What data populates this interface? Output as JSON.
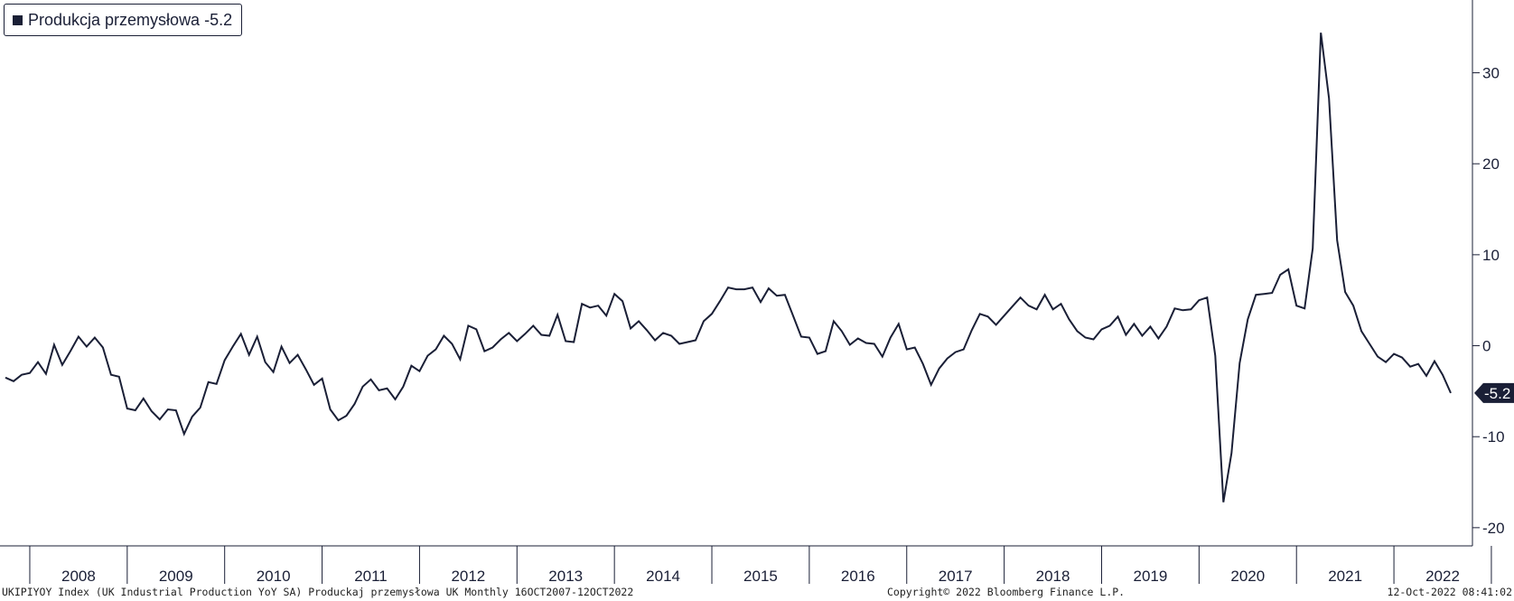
{
  "legend": {
    "label": "Produkcja przemysłowa",
    "value": "-5.2"
  },
  "footer": {
    "left": "UKIPIYOY Index (UK Industrial Production YoY SA) Produckaj przemysłowa UK  Monthly 16OCT2007-12OCT2022",
    "center": "Copyright© 2022 Bloomberg Finance L.P.",
    "right": "12-Oct-2022 08:41:02"
  },
  "colors": {
    "line": "#1a1f36",
    "text": "#1a1f36",
    "background": "#ffffff"
  },
  "chart_data": {
    "type": "line",
    "title": "",
    "xlabel": "",
    "ylabel": "",
    "ylim": [
      -22,
      38
    ],
    "yticks": [
      "30",
      "20",
      "10",
      "0",
      "-10",
      "-20"
    ],
    "ytick_values": [
      30,
      20,
      10,
      0,
      -10,
      -20
    ],
    "x_range": [
      "2007-10",
      "2022-08"
    ],
    "x_tick_labels": [
      "2008",
      "2009",
      "2010",
      "2011",
      "2012",
      "2013",
      "2014",
      "2015",
      "2016",
      "2017",
      "2018",
      "2019",
      "2020",
      "2021",
      "2022"
    ],
    "last_value_label": "-5.2",
    "grid": false,
    "legend_position": "top-left",
    "series": [
      {
        "name": "Produkcja przemysłowa",
        "start": "2007-10",
        "frequency": "monthly",
        "values": [
          -3.5,
          -3.9,
          -3.2,
          -3.0,
          -1.8,
          -3.1,
          0.1,
          -2.1,
          -0.6,
          1.0,
          -0.1,
          0.9,
          -0.2,
          -3.2,
          -3.4,
          -6.9,
          -7.1,
          -5.8,
          -7.2,
          -8.1,
          -7.0,
          -7.1,
          -9.7,
          -7.8,
          -6.8,
          -4.0,
          -4.2,
          -1.6,
          -0.1,
          1.3,
          -1.0,
          1.0,
          -1.8,
          -2.9,
          -0.1,
          -1.9,
          -1.0,
          -2.6,
          -4.3,
          -3.6,
          -7.0,
          -8.2,
          -7.7,
          -6.4,
          -4.5,
          -3.7,
          -4.9,
          -4.7,
          -5.9,
          -4.5,
          -2.2,
          -2.8,
          -1.1,
          -0.4,
          1.1,
          0.2,
          -1.5,
          2.2,
          1.8,
          -0.6,
          -0.2,
          0.7,
          1.4,
          0.5,
          1.3,
          2.2,
          1.2,
          1.1,
          3.4,
          0.5,
          0.4,
          4.6,
          4.2,
          4.4,
          3.3,
          5.7,
          4.9,
          1.9,
          2.7,
          1.7,
          0.6,
          1.4,
          1.1,
          0.2,
          0.4,
          0.6,
          2.7,
          3.5,
          4.9,
          6.4,
          6.2,
          6.2,
          6.4,
          4.8,
          6.3,
          5.5,
          5.6,
          3.3,
          1.0,
          0.9,
          -0.9,
          -0.6,
          2.7,
          1.6,
          0.1,
          0.8,
          0.3,
          0.2,
          -1.2,
          0.9,
          2.4,
          -0.4,
          -0.2,
          -2.0,
          -4.3,
          -2.5,
          -1.4,
          -0.7,
          -0.4,
          1.7,
          3.5,
          3.2,
          2.3,
          3.3,
          4.3,
          5.3,
          4.4,
          4.0,
          5.6,
          4.0,
          4.6,
          2.9,
          1.6,
          0.9,
          0.7,
          1.8,
          2.2,
          3.2,
          1.2,
          2.4,
          1.1,
          2.1,
          0.8,
          2.1,
          4.1,
          3.9,
          4.0,
          5.0,
          5.3,
          -1.1,
          -17.2,
          -11.8,
          -1.9,
          2.9,
          5.6,
          5.7,
          5.8,
          7.8,
          8.4,
          4.4,
          4.1,
          10.7,
          34.4,
          27.2,
          11.6,
          5.9,
          4.4,
          1.6,
          0.2,
          -1.2,
          -1.8,
          -0.9,
          -1.3,
          -2.3,
          -2.0,
          -3.3,
          -1.7,
          -3.2,
          -5.2
        ]
      }
    ]
  }
}
